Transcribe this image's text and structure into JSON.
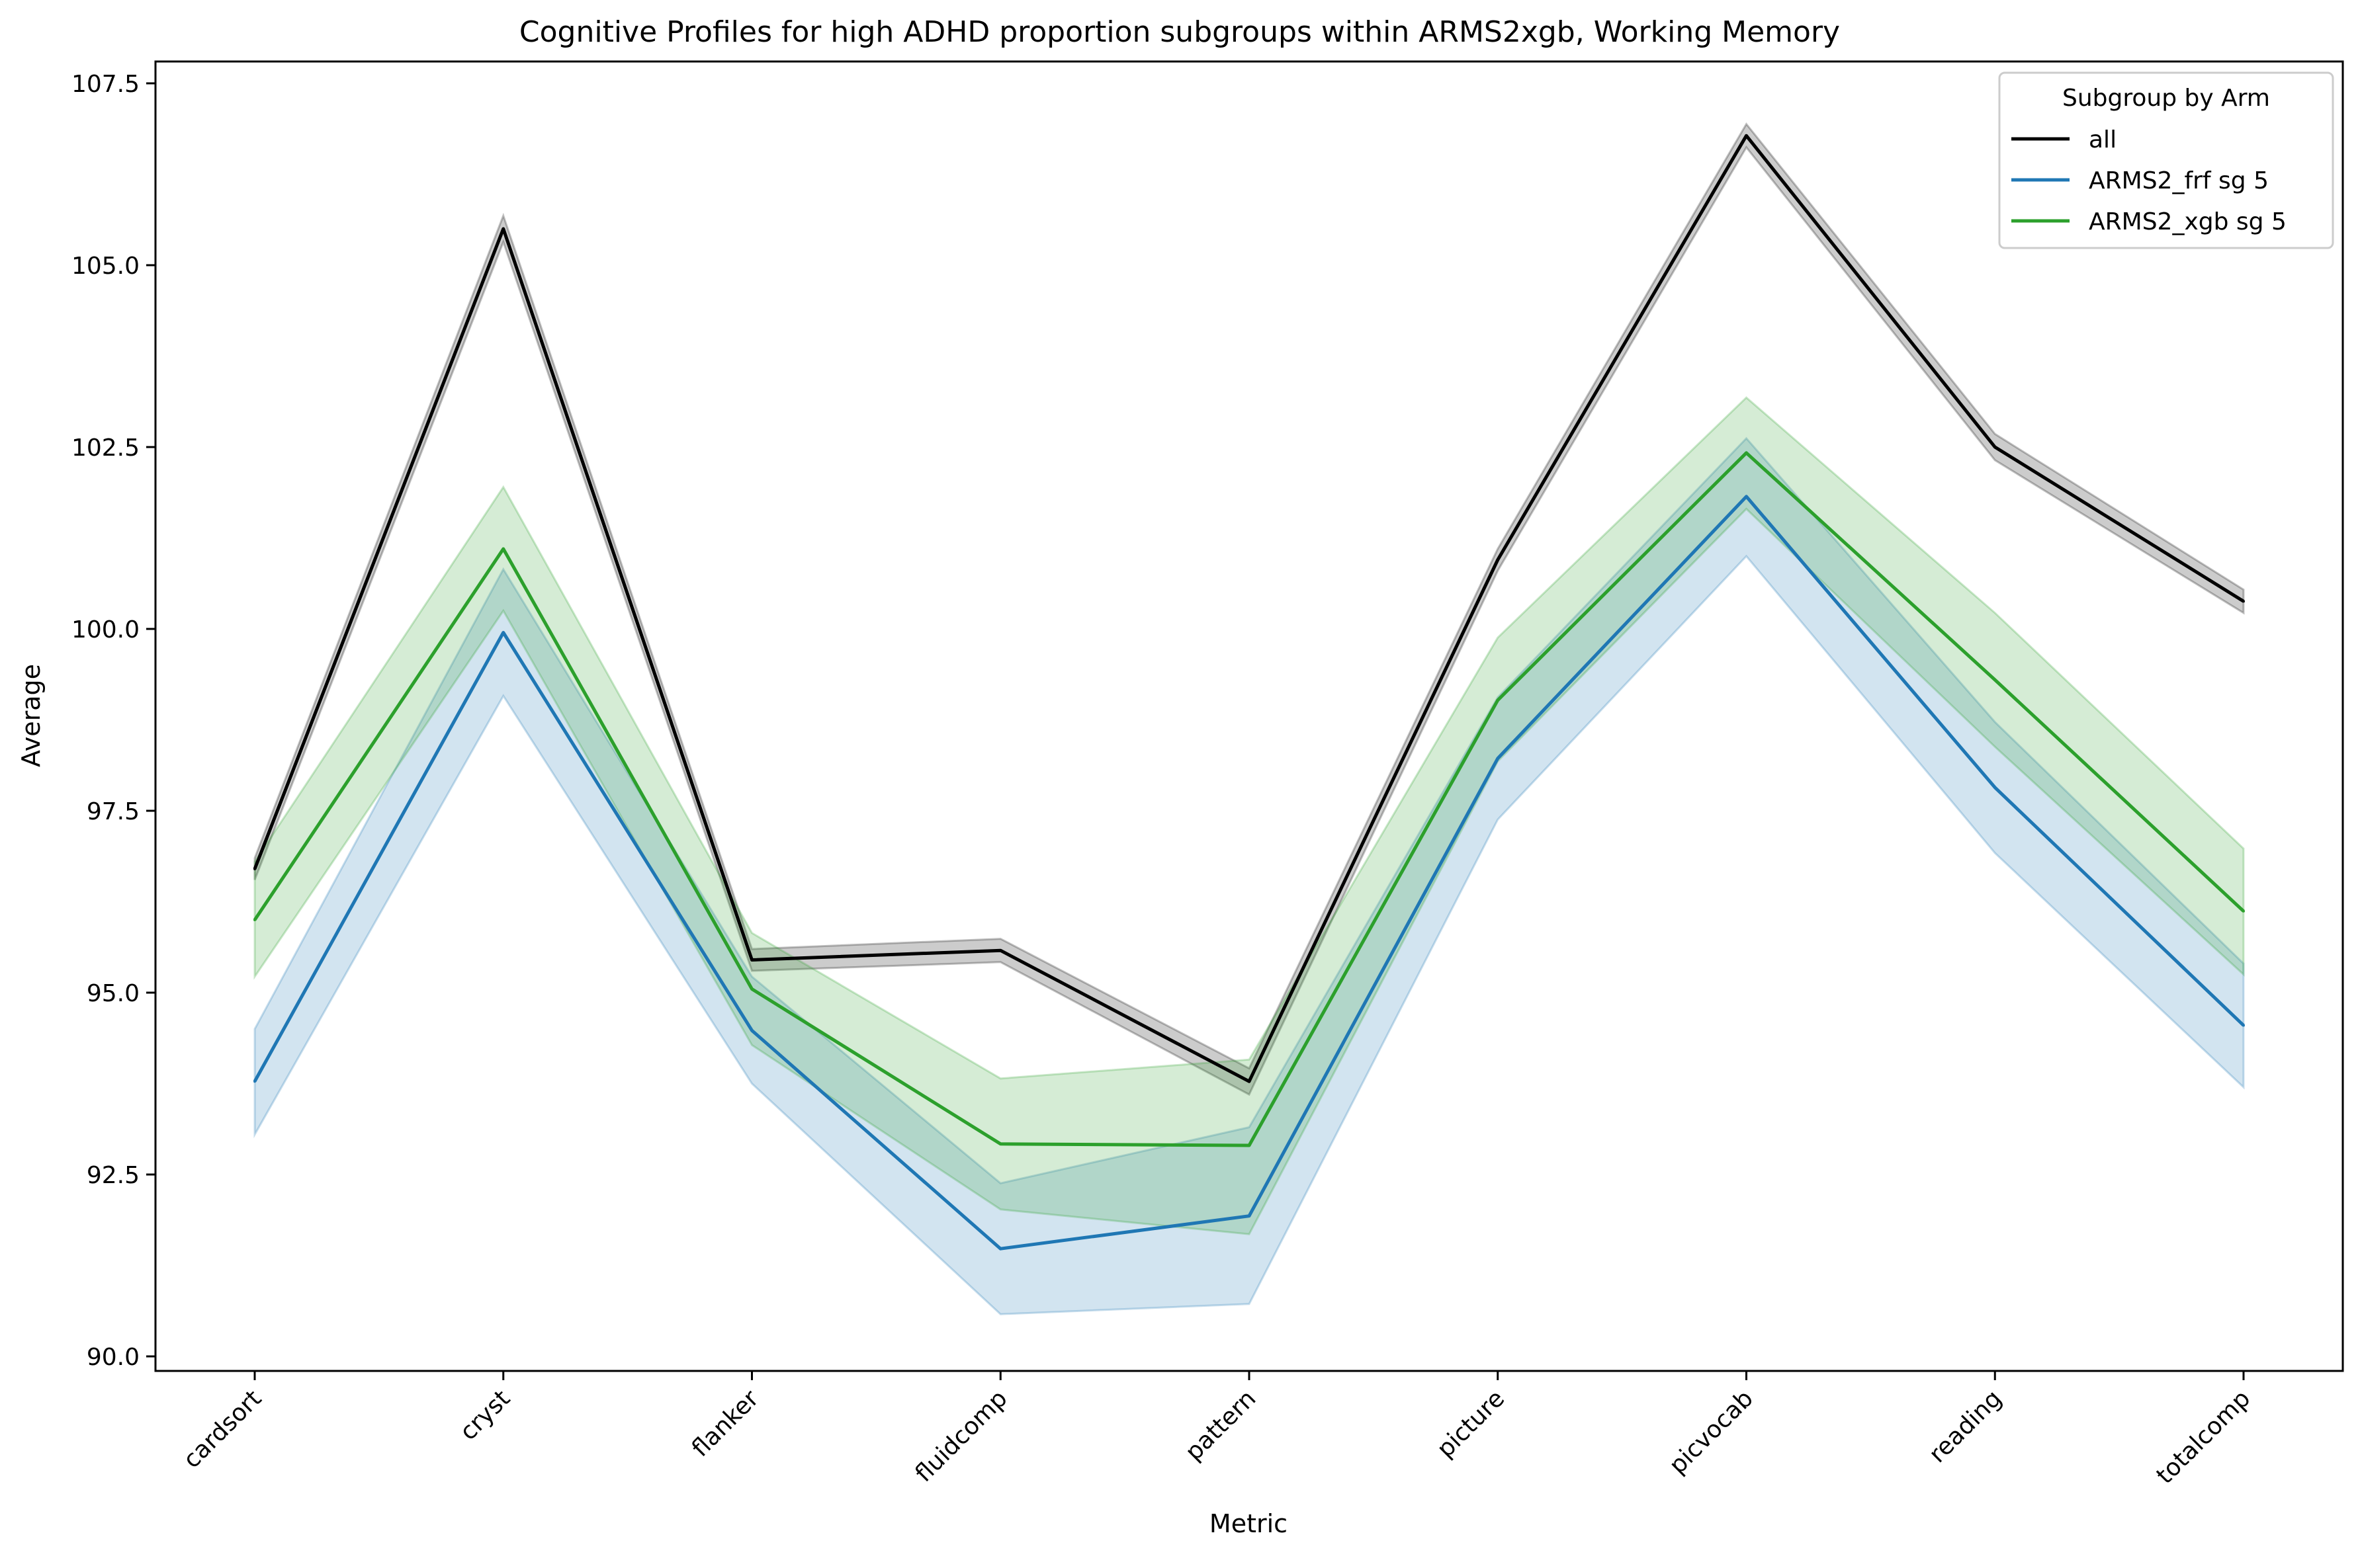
{
  "chart_data": {
    "type": "line",
    "title": "Cognitive Profiles for high ADHD proportion subgroups within ARMS2xgb, Working Memory",
    "xlabel": "Metric",
    "ylabel": "Average",
    "categories": [
      "cardsort",
      "cryst",
      "flanker",
      "fluidcomp",
      "pattern",
      "picture",
      "picvocab",
      "reading",
      "totalcomp"
    ],
    "ylim": [
      89.8,
      107.8
    ],
    "yticks": [
      90.0,
      92.5,
      95.0,
      97.5,
      100.0,
      102.5,
      105.0,
      107.5
    ],
    "ytick_labels": [
      "90.0",
      "92.5",
      "95.0",
      "97.5",
      "100.0",
      "102.5",
      "105.0",
      "107.5"
    ],
    "grid": false,
    "legend": {
      "title": "Subgroup by Arm",
      "position": "top-right"
    },
    "series": [
      {
        "name": "all",
        "color": "#000000",
        "values": [
          96.7,
          105.5,
          95.45,
          95.58,
          93.78,
          100.95,
          106.78,
          102.5,
          100.38
        ],
        "lower": [
          96.55,
          105.32,
          95.3,
          95.42,
          93.6,
          100.8,
          106.62,
          102.32,
          100.22
        ],
        "upper": [
          96.85,
          105.68,
          95.6,
          95.74,
          93.96,
          101.1,
          106.94,
          102.68,
          100.54
        ]
      },
      {
        "name": "ARMS2_frf sg 5",
        "color": "#1f77b4",
        "values": [
          93.78,
          99.95,
          94.48,
          91.48,
          91.93,
          98.22,
          101.82,
          97.82,
          94.55
        ],
        "lower": [
          93.05,
          99.08,
          93.75,
          90.58,
          90.72,
          97.38,
          101.0,
          96.92,
          93.7
        ],
        "upper": [
          94.5,
          100.82,
          95.22,
          92.38,
          93.15,
          99.06,
          102.62,
          98.72,
          95.4
        ]
      },
      {
        "name": "ARMS2_xgb sg 5",
        "color": "#2ca02c",
        "values": [
          96.0,
          101.1,
          95.05,
          92.92,
          92.9,
          99.02,
          102.42,
          99.3,
          96.12
        ],
        "lower": [
          95.22,
          100.25,
          94.28,
          92.02,
          91.68,
          98.18,
          101.65,
          98.38,
          95.25
        ],
        "upper": [
          96.8,
          101.95,
          95.82,
          93.82,
          94.08,
          99.88,
          103.18,
          100.22,
          96.98
        ]
      }
    ]
  }
}
